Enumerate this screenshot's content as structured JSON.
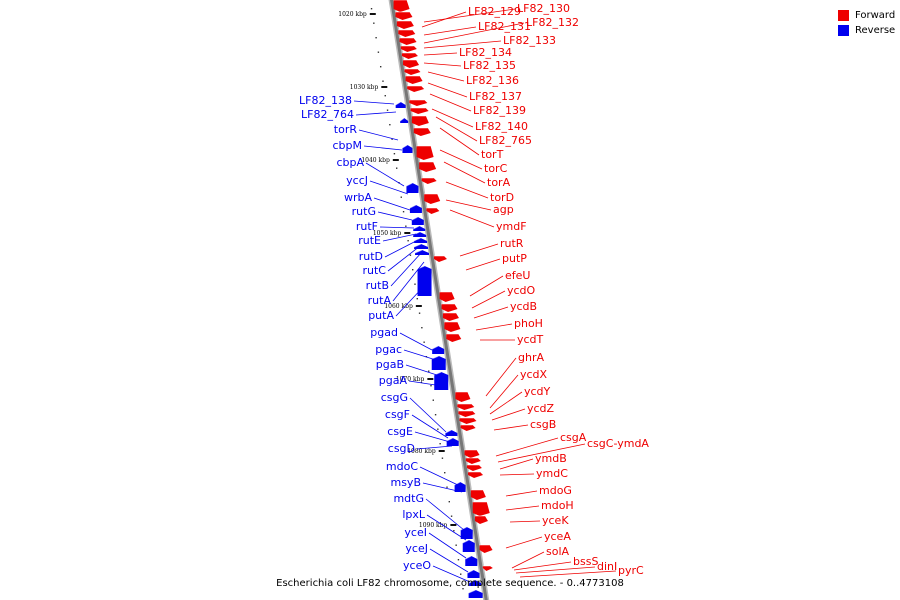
{
  "colors": {
    "forward": "#ee0000",
    "reverse": "#0000ee",
    "backbone": "#777777",
    "tick": "#111111"
  },
  "legend": [
    {
      "label": "Forward",
      "color": "#ee0000"
    },
    {
      "label": "Reverse",
      "color": "#0000ee"
    }
  ],
  "caption": "Escherichia coli LF82 chromosome, complete sequence. - 0..4773108",
  "ticks": [
    "1020 kbp",
    "1030 kbp",
    "1040 kbp",
    "1050 kbp",
    "1060 kbp",
    "1070 kbp",
    "1080 kbp",
    "1090 kbp"
  ],
  "forward_genes": [
    "LF82_129",
    "LF82_130",
    "LF82_131",
    "LF82_132",
    "LF82_133",
    "LF82_134",
    "LF82_135",
    "LF82_136",
    "LF82_137",
    "LF82_139",
    "LF82_140",
    "LF82_765",
    "torT",
    "torC",
    "torA",
    "torD",
    "agp",
    "ymdF",
    "rutR",
    "putP",
    "efeU",
    "ycdO",
    "ycdB",
    "phoH",
    "ycdT",
    "ghrA",
    "ycdX",
    "ycdY",
    "ycdZ",
    "csgB",
    "csgA",
    "csgC-ymdA",
    "ymdB",
    "ymdC",
    "mdoG",
    "mdoH",
    "yceK",
    "yceA",
    "solA",
    "bssS",
    "dinI",
    "pyrC"
  ],
  "reverse_genes": [
    "LF82_138",
    "LF82_764",
    "torR",
    "cbpM",
    "cbpA",
    "yccJ",
    "wrbA",
    "rutG",
    "rutF",
    "rutE",
    "rutD",
    "rutC",
    "rutB",
    "rutA",
    "putA",
    "pgad",
    "pgac",
    "pgaB",
    "pgaA",
    "csgG",
    "csgF",
    "csgE",
    "csgD",
    "mdoC",
    "msyB",
    "mdtG",
    "lpxL",
    "yceI",
    "yceJ",
    "yceO"
  ]
}
